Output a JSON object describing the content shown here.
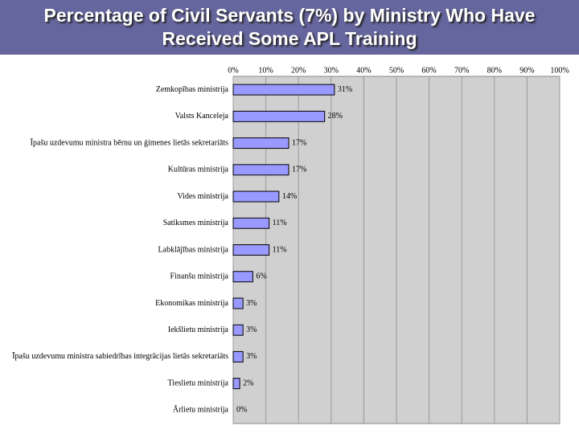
{
  "chart_data": {
    "type": "bar",
    "orientation": "horizontal",
    "title": "Percentage of Civil Servants (7%) by Ministry Who Have Received Some APL Training",
    "categories": [
      "Zemkopības ministrija",
      "Valsts Kanceleja",
      "Īpašu uzdevumu ministra bērnu un ģimenes lietās sekretariāts",
      "Kultūras ministrija",
      "Vides ministrija",
      "Satiksmes ministrija",
      "Labklājības ministrija",
      "Finanšu ministrija",
      "Ekonomikas ministrija",
      "Iekšlietu ministrija",
      "Īpašu uzdevumu ministra sabiedrības integrācijas lietās sekretariāts",
      "Tieslietu ministrija",
      "Ārlietu ministrija"
    ],
    "values": [
      31,
      28,
      17,
      17,
      14,
      11,
      11,
      6,
      3,
      3,
      3,
      2,
      0
    ],
    "value_labels": [
      "31%",
      "28%",
      "17%",
      "17%",
      "14%",
      "11%",
      "11%",
      "6%",
      "3%",
      "3%",
      "3%",
      "2%",
      "0%"
    ],
    "color": "#9999ff",
    "xlim": [
      0,
      100
    ],
    "xticks": [
      {
        "value": 0,
        "label": "0%"
      },
      {
        "value": 10,
        "label": "10%"
      },
      {
        "value": 20,
        "label": "20%"
      },
      {
        "value": 30,
        "label": "30%"
      },
      {
        "value": 40,
        "label": "40%"
      },
      {
        "value": 50,
        "label": "50%"
      },
      {
        "value": 60,
        "label": "60%"
      },
      {
        "value": 70,
        "label": "70%"
      },
      {
        "value": 80,
        "label": "80%"
      },
      {
        "value": 90,
        "label": "90%"
      },
      {
        "value": 100,
        "label": "100%"
      }
    ],
    "grid": true
  }
}
